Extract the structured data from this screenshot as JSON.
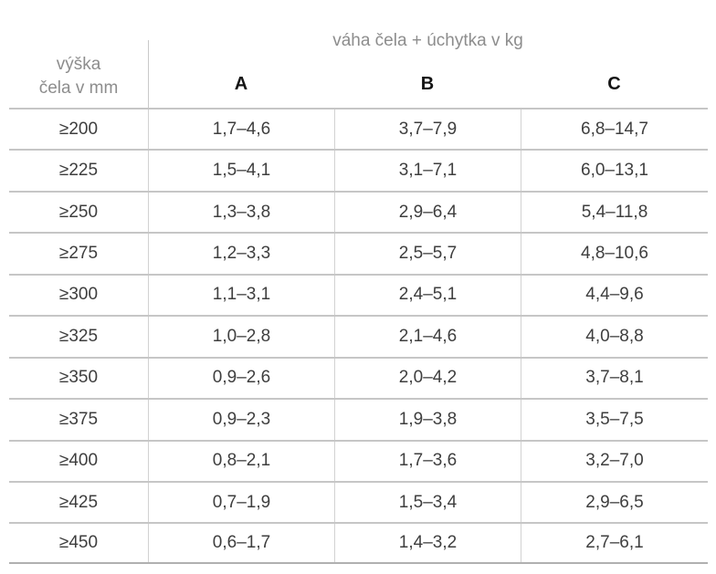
{
  "table": {
    "corner_header_line1": "výška",
    "corner_header_line2": "čela v mm",
    "group_header": "váha čela + úchytka v kg",
    "columns": [
      "A",
      "B",
      "C"
    ],
    "rows": [
      {
        "height": "≥200",
        "a": "1,7–4,6",
        "b": "3,7–7,9",
        "c": "6,8–14,7"
      },
      {
        "height": "≥225",
        "a": "1,5–4,1",
        "b": "3,1–7,1",
        "c": "6,0–13,1"
      },
      {
        "height": "≥250",
        "a": "1,3–3,8",
        "b": "2,9–6,4",
        "c": "5,4–11,8"
      },
      {
        "height": "≥275",
        "a": "1,2–3,3",
        "b": "2,5–5,7",
        "c": "4,8–10,6"
      },
      {
        "height": "≥300",
        "a": "1,1–3,1",
        "b": "2,4–5,1",
        "c": "4,4–9,6"
      },
      {
        "height": "≥325",
        "a": "1,0–2,8",
        "b": "2,1–4,6",
        "c": "4,0–8,8"
      },
      {
        "height": "≥350",
        "a": "0,9–2,6",
        "b": "2,0–4,2",
        "c": "3,7–8,1"
      },
      {
        "height": "≥375",
        "a": "0,9–2,3",
        "b": "1,9–3,8",
        "c": "3,5–7,5"
      },
      {
        "height": "≥400",
        "a": "0,8–2,1",
        "b": "1,7–3,6",
        "c": "3,2–7,0"
      },
      {
        "height": "≥425",
        "a": "0,7–1,9",
        "b": "1,5–3,4",
        "c": "2,9–6,5"
      },
      {
        "height": "≥450",
        "a": "0,6–1,7",
        "b": "1,4–3,2",
        "c": "2,7–6,1"
      }
    ],
    "colors": {
      "header_text": "#8d8d8d",
      "data_text": "#3e3e3e",
      "grid_line": "#c6c6c6",
      "column_divider": "#d2d2d2"
    }
  }
}
